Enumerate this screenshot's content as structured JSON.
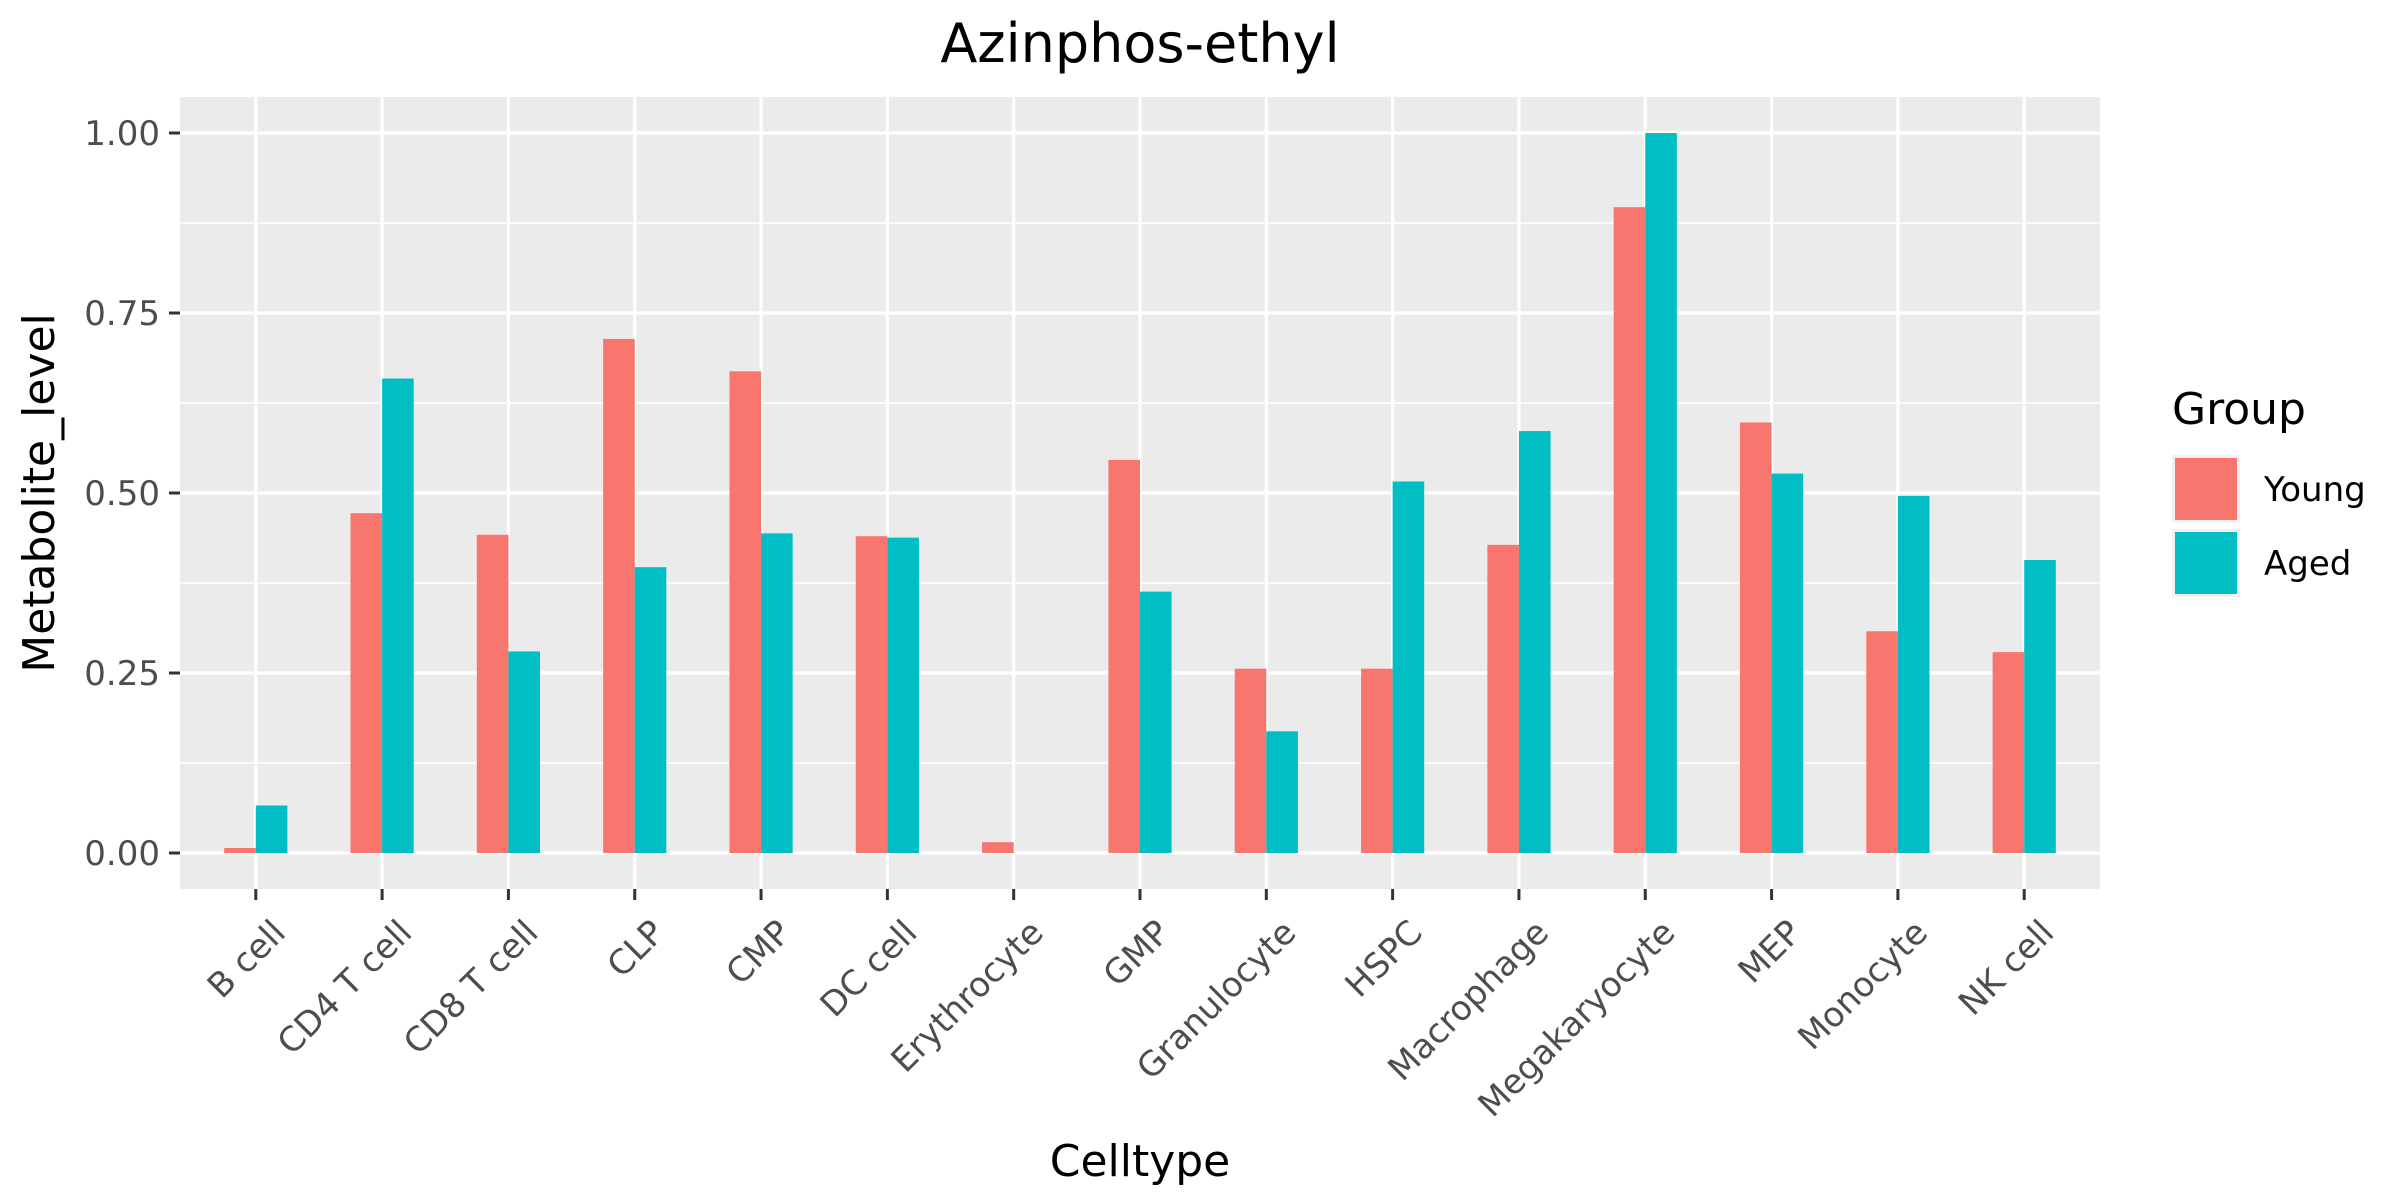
{
  "chart_data": {
    "type": "bar",
    "title": "Azinphos-ethyl",
    "xlabel": "Celltype",
    "ylabel": "Metabolite_level",
    "ylim": [
      -0.05,
      1.05
    ],
    "yticks": [
      0.0,
      0.25,
      0.5,
      0.75,
      1.0
    ],
    "ytick_labels": [
      "0.00",
      "0.25",
      "0.50",
      "0.75",
      "1.00"
    ],
    "grid": true,
    "legend": {
      "title": "Group",
      "position": "right"
    },
    "categories": [
      "B cell",
      "CD4 T cell",
      "CD8 T cell",
      "CLP",
      "CMP",
      "DC cell",
      "Erythrocyte",
      "GMP",
      "Granulocyte",
      "HSPC",
      "Macrophage",
      "Megakaryocyte",
      "MEP",
      "Monocyte",
      "NK cell"
    ],
    "series": [
      {
        "name": "Young",
        "color": "#F8766D",
        "values": [
          0.007,
          0.472,
          0.442,
          0.714,
          0.669,
          0.44,
          0.015,
          0.546,
          0.256,
          0.256,
          0.428,
          0.897,
          0.598,
          0.308,
          0.279
        ]
      },
      {
        "name": "Aged",
        "color": "#00BFC4",
        "values": [
          0.066,
          0.659,
          0.28,
          0.397,
          0.444,
          0.438,
          0.0,
          0.363,
          0.169,
          0.516,
          0.586,
          1.0,
          0.527,
          0.496,
          0.407
        ]
      }
    ]
  }
}
